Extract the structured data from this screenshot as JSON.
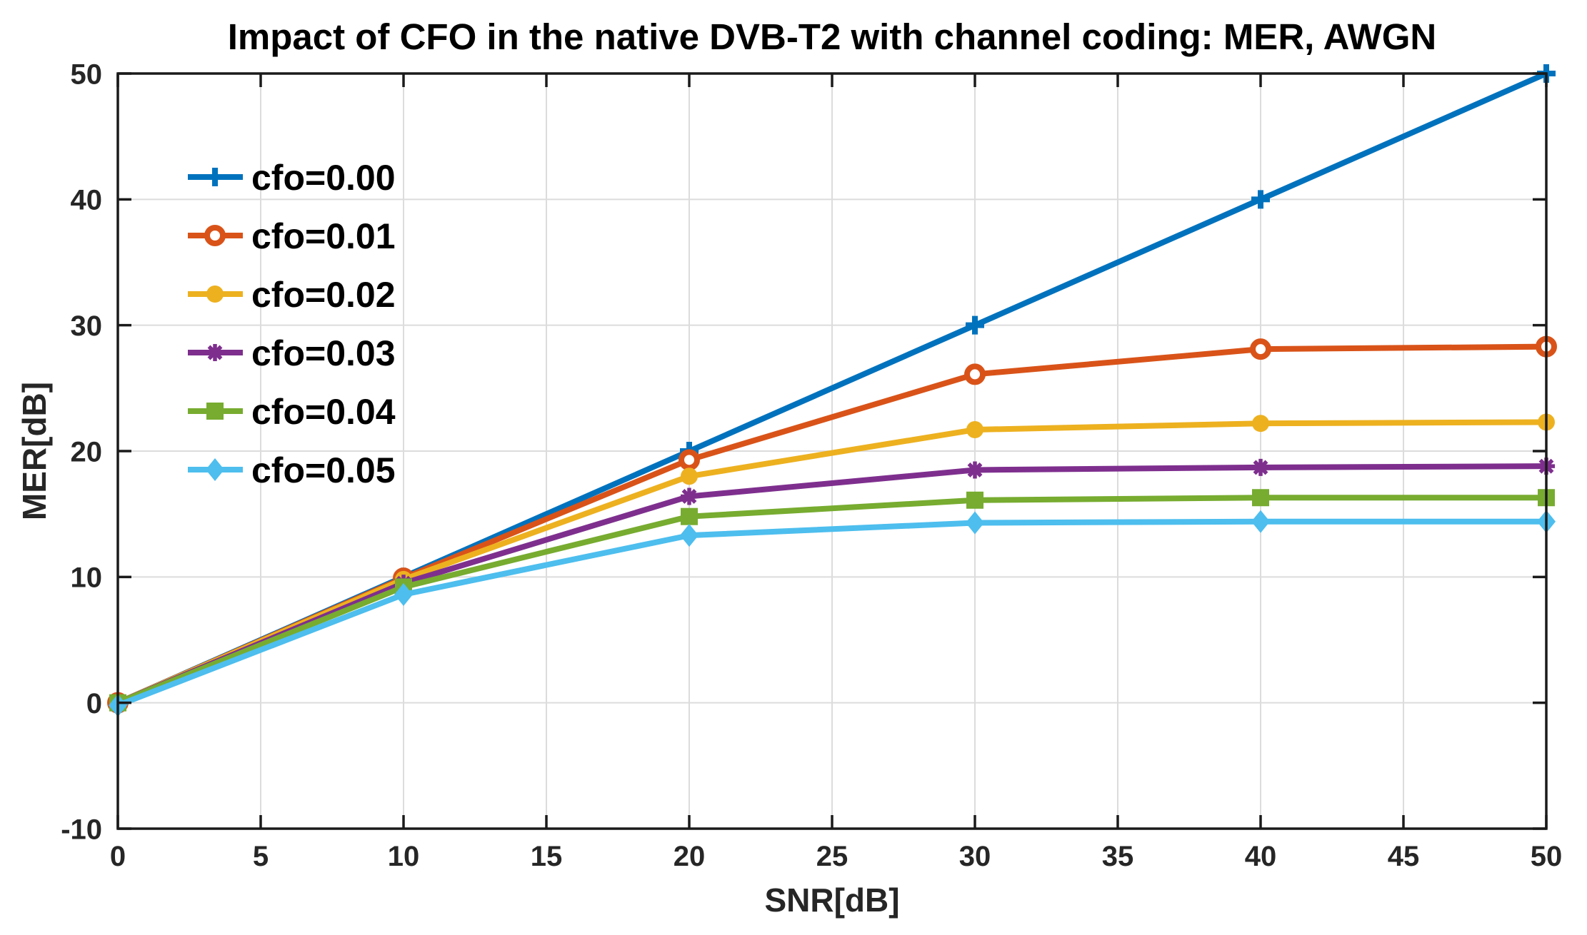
{
  "chart_data": {
    "type": "line",
    "title": "Impact of CFO in the native DVB-T2 with channel coding: MER, AWGN",
    "xlabel": "SNR[dB]",
    "ylabel": "MER[dB]",
    "xlim": [
      0,
      50
    ],
    "ylim": [
      -10,
      50
    ],
    "xticks": [
      0,
      5,
      10,
      15,
      20,
      25,
      30,
      35,
      40,
      45,
      50
    ],
    "yticks": [
      -10,
      0,
      10,
      20,
      30,
      40,
      50
    ],
    "grid": true,
    "legend_position": "upper-left-inside",
    "x": [
      0,
      10,
      20,
      30,
      40,
      50
    ],
    "series": [
      {
        "name": "cfo=0.00",
        "color": "#0072BD",
        "marker": "plus",
        "values": [
          0,
          10.0,
          20.0,
          30.0,
          40.0,
          50.0
        ]
      },
      {
        "name": "cfo=0.01",
        "color": "#D95319",
        "marker": "circle-open",
        "values": [
          0,
          9.9,
          19.3,
          26.1,
          28.1,
          28.3
        ]
      },
      {
        "name": "cfo=0.02",
        "color": "#EDB120",
        "marker": "dot",
        "values": [
          0,
          9.8,
          18.0,
          21.7,
          22.2,
          22.3
        ]
      },
      {
        "name": "cfo=0.03",
        "color": "#7E2F8E",
        "marker": "asterisk",
        "values": [
          0,
          9.5,
          16.4,
          18.5,
          18.7,
          18.8
        ]
      },
      {
        "name": "cfo=0.04",
        "color": "#77AC30",
        "marker": "square",
        "values": [
          0,
          9.2,
          14.8,
          16.1,
          16.3,
          16.3
        ]
      },
      {
        "name": "cfo=0.05",
        "color": "#4DBEEE",
        "marker": "diamond",
        "values": [
          -0.2,
          8.6,
          13.3,
          14.3,
          14.4,
          14.4
        ]
      }
    ],
    "colors": {
      "axis": "#1a1a1a",
      "tick_text": "#262626",
      "grid": "#DCDCDC",
      "background": "#FFFFFF",
      "legend_text": "#000000"
    }
  }
}
